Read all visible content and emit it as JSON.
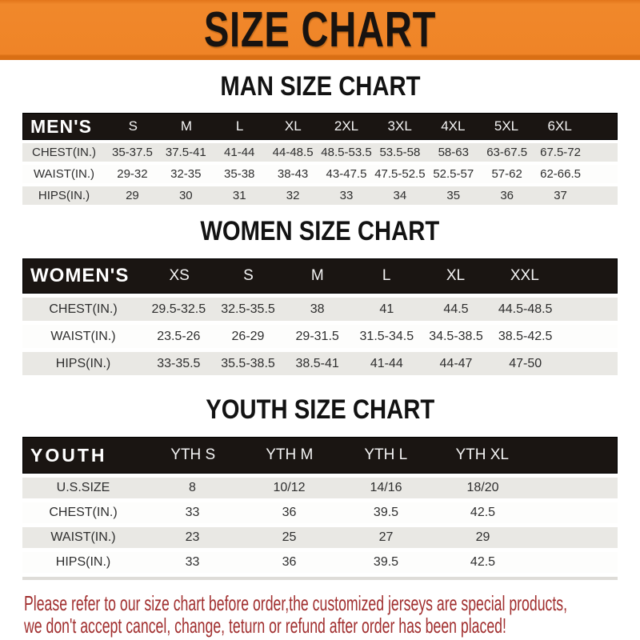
{
  "banner": {
    "title": "SIZE CHART"
  },
  "colors": {
    "banner_orange": "#EF8427",
    "banner_edge_dark": "#D96F14",
    "table_header_black": "#1A1512",
    "row_gray": "#E9E8E4",
    "row_white": "#FDFDFC",
    "footer_red": "#A12F2F"
  },
  "sections": {
    "men": {
      "title": "MAN SIZE CHART",
      "table": {
        "header": [
          "MEN'S",
          "S",
          "M",
          "L",
          "XL",
          "2XL",
          "3XL",
          "4XL",
          "5XL",
          "6XL"
        ],
        "rows": [
          [
            "CHEST(IN.)",
            "35-37.5",
            "37.5-41",
            "41-44",
            "44-48.5",
            "48.5-53.5",
            "53.5-58",
            "58-63",
            "63-67.5",
            "67.5-72"
          ],
          [
            "WAIST(IN.)",
            "29-32",
            "32-35",
            "35-38",
            "38-43",
            "43-47.5",
            "47.5-52.5",
            "52.5-57",
            "57-62",
            "62-66.5"
          ],
          [
            "HIPS(IN.)",
            "29",
            "30",
            "31",
            "32",
            "33",
            "34",
            "35",
            "36",
            "37"
          ]
        ]
      }
    },
    "women": {
      "title": "WOMEN SIZE CHART",
      "table": {
        "header": [
          "WOMEN'S",
          "XS",
          "S",
          "M",
          "L",
          "XL",
          "XXL"
        ],
        "rows": [
          [
            "CHEST(IN.)",
            "29.5-32.5",
            "32.5-35.5",
            "38",
            "41",
            "44.5",
            "44.5-48.5"
          ],
          [
            "WAIST(IN.)",
            "23.5-26",
            "26-29",
            "29-31.5",
            "31.5-34.5",
            "34.5-38.5",
            "38.5-42.5"
          ],
          [
            "HIPS(IN.)",
            "33-35.5",
            "35.5-38.5",
            "38.5-41",
            "41-44",
            "44-47",
            "47-50"
          ]
        ]
      }
    },
    "youth": {
      "title": "YOUTH SIZE CHART",
      "table": {
        "header": [
          "YOUTH",
          "YTH S",
          "YTH M",
          "YTH L",
          "YTH XL"
        ],
        "rows": [
          [
            "U.S.SIZE",
            "8",
            "10/12",
            "14/16",
            "18/20"
          ],
          [
            "CHEST(IN.)",
            "33",
            "36",
            "39.5",
            "42.5"
          ],
          [
            "WAIST(IN.)",
            "23",
            "25",
            "27",
            "29"
          ],
          [
            "HIPS(IN.)",
            "33",
            "36",
            "39.5",
            "42.5"
          ]
        ]
      }
    }
  },
  "footer": {
    "line1": "Please refer to our size chart before order,the customized jerseys are special products,",
    "line2": "we don't accept cancel, change, teturn or refund after order has been placed!"
  }
}
